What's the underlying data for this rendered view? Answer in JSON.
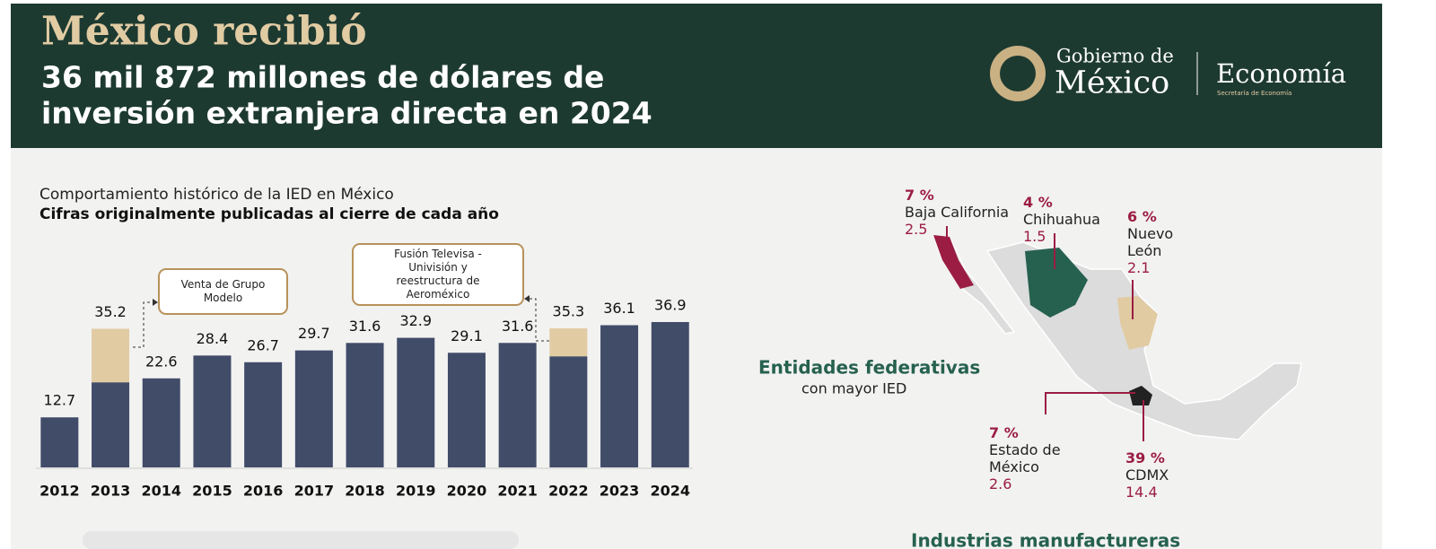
{
  "header": {
    "title": "México recibió",
    "subtitle_line1": "36 mil 872 millones de dólares de",
    "subtitle_line2": "inversión extranjera directa en 2024",
    "logo_gob_small": "Gobierno de",
    "logo_gob_big": "México",
    "logo_eco": "Economía",
    "logo_eco_sub": "Secretaría de Economía"
  },
  "chart_data": {
    "type": "bar",
    "title": "Comportamiento histórico de la IED en México",
    "subtitle": "Cifras originalmente publicadas al cierre de cada año",
    "categories": [
      "2012",
      "2013",
      "2014",
      "2015",
      "2016",
      "2017",
      "2018",
      "2019",
      "2020",
      "2021",
      "2022",
      "2023",
      "2024"
    ],
    "series": [
      {
        "color": "#414c69",
        "values": [
          12.7,
          21.6,
          22.6,
          28.4,
          26.7,
          29.7,
          31.6,
          32.9,
          29.1,
          31.6,
          28.2,
          36.1,
          36.9
        ]
      },
      {
        "color": "#e1cba3",
        "values": [
          null,
          13.6,
          null,
          null,
          null,
          null,
          null,
          null,
          null,
          null,
          7.1,
          null,
          null
        ]
      }
    ],
    "value_labels": [
      "12.7",
      "35.2",
      "22.6",
      "28.4",
      "26.7",
      "29.7",
      "31.6",
      "32.9",
      "29.1",
      "31.6",
      "35.3",
      "36.1",
      "36.9"
    ],
    "ylim": [
      0,
      40
    ],
    "stacked": true,
    "annotations": [
      "Venta de Grupo Modelo",
      "Fusión Televisa - Univisión y reestructura de Aeroméxico"
    ]
  },
  "map": {
    "title": "Entidades federativas",
    "subtitle": "con mayor IED",
    "entities": [
      {
        "pct": "7 %",
        "name": "Baja California",
        "value": "2.5",
        "color": "#9b1d43"
      },
      {
        "pct": "4 %",
        "name": "Chihuahua",
        "value": "1.5",
        "color": "#26614f"
      },
      {
        "pct": "6 %",
        "name": "Nuevo León",
        "value": "2.1",
        "color": "#e1cba3"
      },
      {
        "pct": "7 %",
        "name": "Estado de México",
        "value": "2.6",
        "color": "#222222"
      },
      {
        "pct": "39 %",
        "name": "CDMX",
        "value": "14.4",
        "color": "#111111"
      }
    ]
  },
  "next_section": "Industrias manufactureras"
}
